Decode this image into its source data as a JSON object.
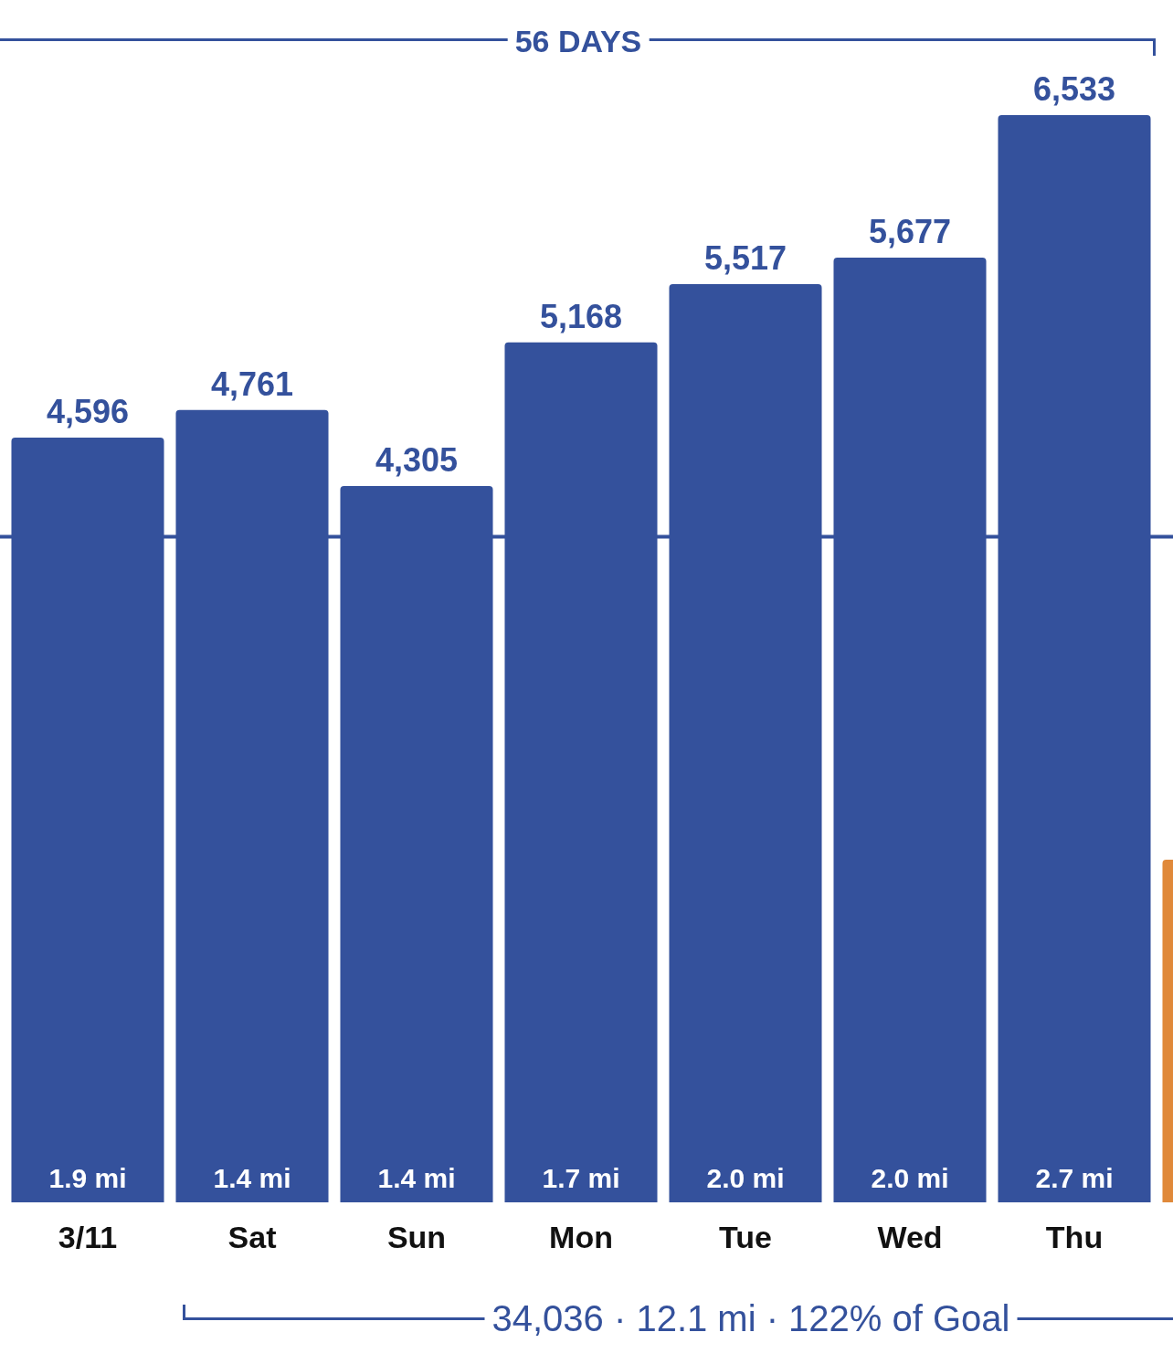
{
  "chart_data": {
    "type": "bar",
    "categories": [
      "3/11",
      "Sat",
      "Sun",
      "Mon",
      "Tue",
      "Wed",
      "Thu",
      null
    ],
    "values": [
      4596,
      4761,
      4305,
      5168,
      5517,
      5677,
      6533,
      2060
    ],
    "colors": [
      "#34519c",
      "#34519c",
      "#34519c",
      "#34519c",
      "#34519c",
      "#34519c",
      "#34519c",
      "#e0893a"
    ],
    "value_labels": [
      "4,596",
      "4,761",
      "4,305",
      "5,168",
      "5,517",
      "5,677",
      "6,533",
      null
    ],
    "ref_lines": [
      {
        "axis": "y",
        "value": 4000,
        "color": "#34519c"
      }
    ],
    "annotations": [
      {
        "text": "1.9 mi",
        "x": "3/11",
        "y": 0
      },
      {
        "text": "1.4 mi",
        "x": "Sat",
        "y": 0
      },
      {
        "text": "1.4 mi",
        "x": "Sun",
        "y": 0
      },
      {
        "text": "1.7 mi",
        "x": "Mon",
        "y": 0
      },
      {
        "text": "2.0 mi",
        "x": "Tue",
        "y": 0
      },
      {
        "text": "2.0 mi",
        "x": "Wed",
        "y": 0
      },
      {
        "text": "2.7 mi",
        "x": "Thu",
        "y": 0
      },
      "56 DAYS",
      "34,036 · 12.1 mi · 122% of Goal"
    ]
  }
}
